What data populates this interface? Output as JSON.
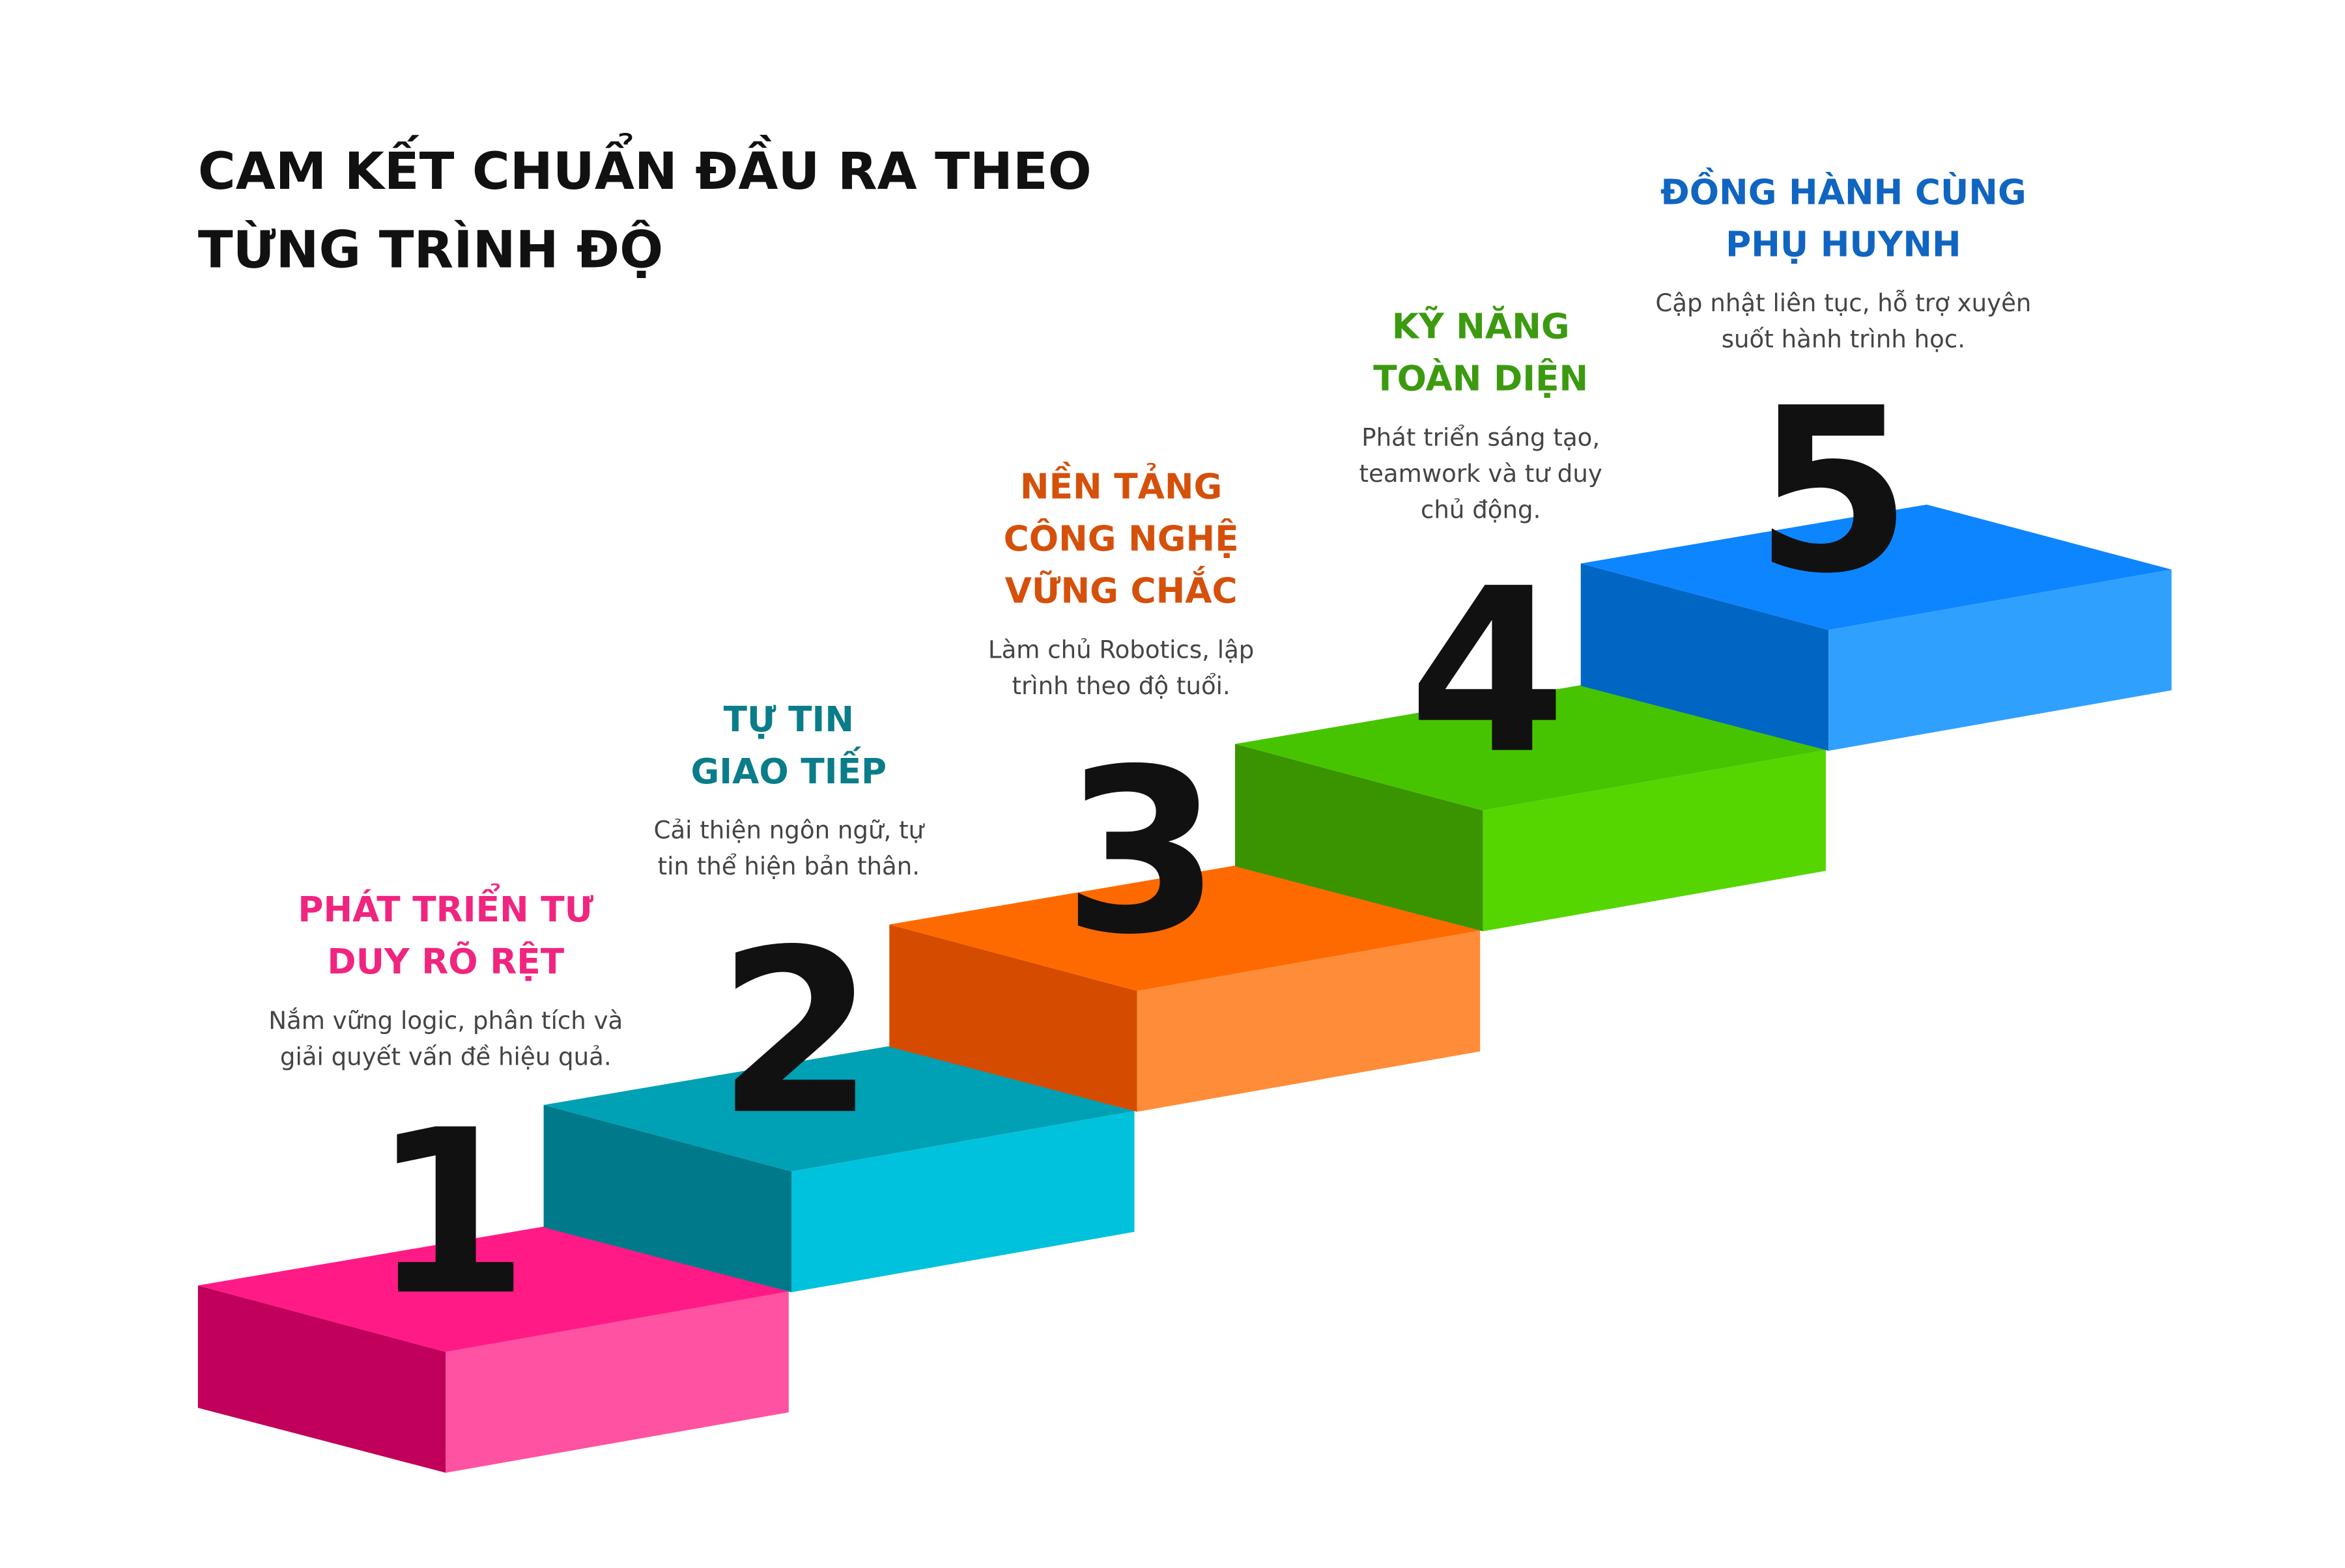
{
  "title": {
    "lines": [
      "CAM KẾT CHUẨN ĐẦU RA THEO",
      "TỪNG TRÌNH ĐỘ"
    ]
  },
  "steps": [
    {
      "number": "1",
      "heading": [
        "PHÁT TRIỂN TƯ",
        "DUY RÕ RỆT"
      ],
      "description": [
        "Nắm vững logic, phân tích và",
        "giải quyết vấn đề hiệu quả."
      ]
    },
    {
      "number": "2",
      "heading": [
        "TỰ TIN",
        "GIAO TIẾP"
      ],
      "description": [
        "Cải thiện ngôn ngữ, tự",
        "tin thể hiện bản thân."
      ]
    },
    {
      "number": "3",
      "heading": [
        "NỀN TẢNG",
        "CÔNG NGHỆ",
        "VỮNG CHẮC"
      ],
      "description": [
        "Làm chủ Robotics, lập",
        "trình theo độ tuổi."
      ]
    },
    {
      "number": "4",
      "heading": [
        "KỸ NĂNG",
        "TOÀN DIỆN"
      ],
      "description": [
        "Phát triển sáng tạo,",
        "teamwork và tư duy",
        "chủ động."
      ]
    },
    {
      "number": "5",
      "heading": [
        "ĐỒNG HÀNH CÙNG",
        "PHỤ HUYNH"
      ],
      "description": [
        "Cập nhật liên tục, hỗ trợ xuyên",
        "suốt hành trình học."
      ]
    }
  ]
}
